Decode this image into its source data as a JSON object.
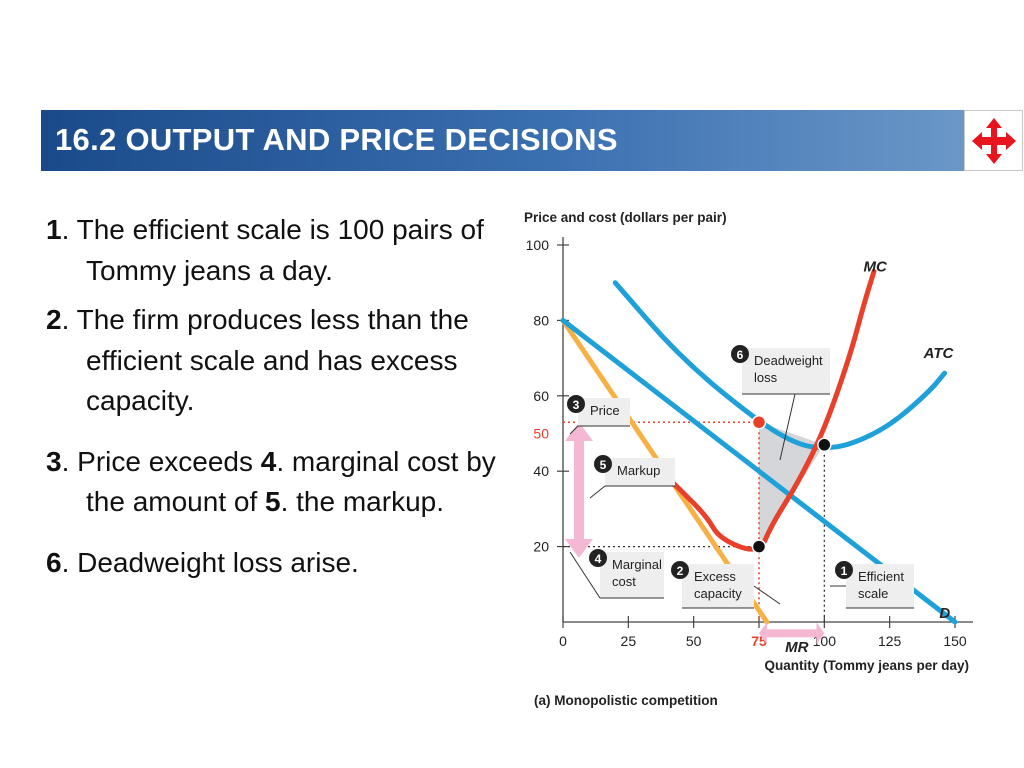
{
  "slide": {
    "title": "16.2  OUTPUT AND PRICE DECISIONS",
    "nav_icon": "four-way-arrows-icon",
    "accent_color": "#1a4a8a",
    "bullets": [
      {
        "num": "1",
        "text": ". The efficient scale is 100 pairs of Tommy jeans a day."
      },
      {
        "num": "2",
        "text": ". The firm produces less than the efficient scale and has excess capacity."
      },
      {
        "num": "3",
        "text_a": ". Price exceeds ",
        "num2": "4",
        "text_b": ". marginal cost by the amount of ",
        "num3": "5",
        "text_c": ". the markup."
      },
      {
        "num": "6",
        "text": ". Deadweight loss arise."
      }
    ]
  },
  "chart_data": {
    "type": "line",
    "title": "",
    "ylabel": "Price and cost (dollars per pair)",
    "xlabel": "Quantity (Tommy jeans per day)",
    "caption": "(a) Monopolistic competition",
    "xlim": [
      0,
      150
    ],
    "ylim": [
      0,
      100
    ],
    "x_ticks": [
      0,
      25,
      50,
      75,
      100,
      125,
      150
    ],
    "y_ticks": [
      20,
      40,
      60,
      80,
      100
    ],
    "highlight_ticks": {
      "x": "75",
      "y": "50"
    },
    "series": [
      {
        "name": "MC",
        "color": "#e8402a",
        "points": [
          [
            36,
            41
          ],
          [
            45,
            35
          ],
          [
            55,
            28
          ],
          [
            60,
            22
          ],
          [
            75,
            18
          ],
          [
            80,
            26
          ],
          [
            90,
            37
          ],
          [
            100,
            51
          ],
          [
            110,
            71
          ],
          [
            115,
            84
          ],
          [
            119,
            93
          ]
        ]
      },
      {
        "name": "ATC",
        "color": "#1ea0d8",
        "points": [
          [
            20,
            90
          ],
          [
            45,
            70
          ],
          [
            75,
            53
          ],
          [
            90,
            47
          ],
          [
            100,
            46
          ],
          [
            110,
            47
          ],
          [
            125,
            52
          ],
          [
            140,
            61
          ],
          [
            146,
            66
          ]
        ]
      },
      {
        "name": "D",
        "color": "#1ea0d8",
        "points": [
          [
            0,
            80
          ],
          [
            150,
            0
          ]
        ]
      },
      {
        "name": "MR",
        "color": "#f7b044",
        "points": [
          [
            0,
            80
          ],
          [
            78,
            0
          ]
        ]
      }
    ],
    "markers": [
      {
        "x": 75,
        "y": 53,
        "color": "#e8402a"
      },
      {
        "x": 100,
        "y": 47,
        "color": "#111111"
      },
      {
        "x": 75,
        "y": 20,
        "color": "#111111"
      }
    ],
    "annotations": [
      {
        "num": "1",
        "text": [
          "Efficient",
          "scale"
        ]
      },
      {
        "num": "2",
        "text": [
          "Excess",
          "capacity"
        ]
      },
      {
        "num": "3",
        "text": [
          "Price"
        ]
      },
      {
        "num": "4",
        "text": [
          "Marginal",
          "cost"
        ]
      },
      {
        "num": "5",
        "text": [
          "Markup"
        ]
      },
      {
        "num": "6",
        "text": [
          "Deadweight",
          "loss"
        ]
      }
    ],
    "grid": false,
    "legend": "inline-labels"
  }
}
